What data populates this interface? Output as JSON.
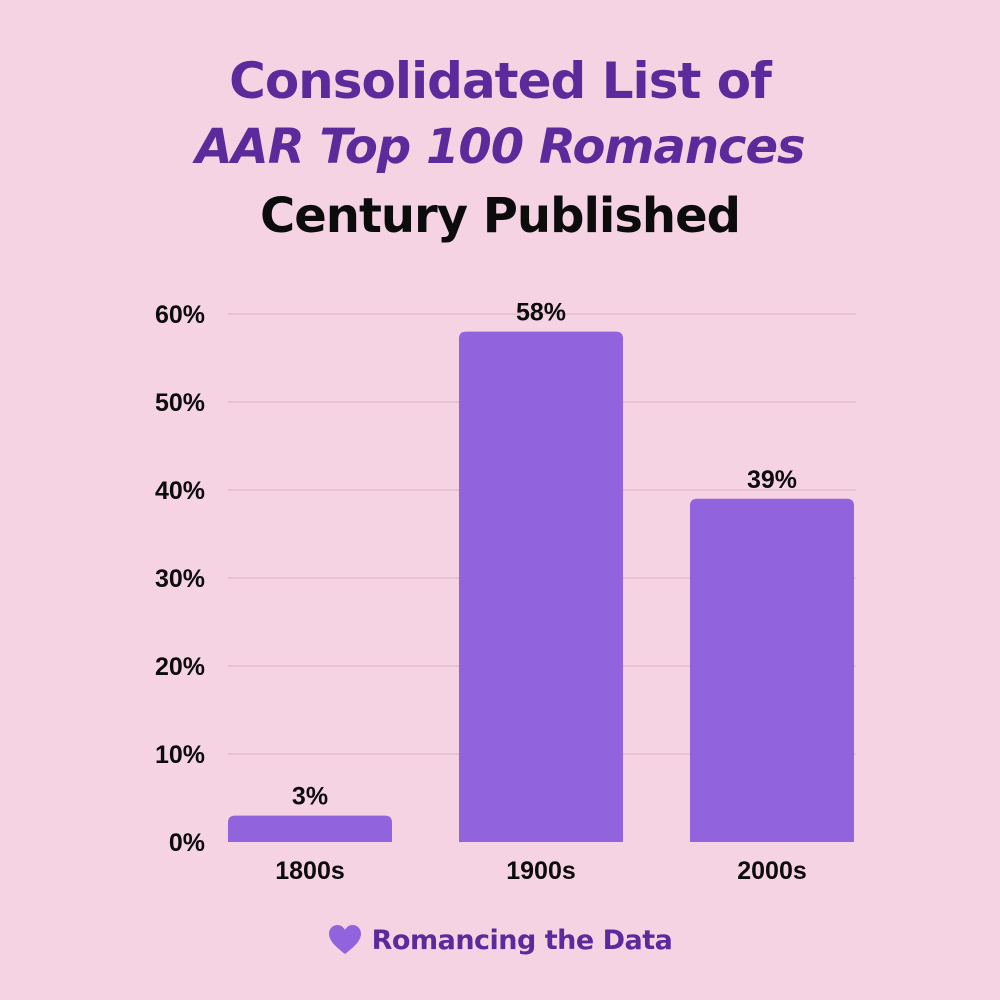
{
  "header": {
    "title_line1": "Consolidated List of",
    "title_line2": "AAR Top 100 Romances",
    "subtitle": "Century Published"
  },
  "footer": {
    "brand": "Romancing the Data",
    "icon": "heart-icon"
  },
  "colors": {
    "background": "#f6d3e3",
    "bar": "#9163dc",
    "title": "#5b2b9b",
    "text": "#0c0c0c",
    "grid": "#e3bccb"
  },
  "chart_data": {
    "type": "bar",
    "title": "Century Published",
    "categories": [
      "1800s",
      "1900s",
      "2000s"
    ],
    "values": [
      3,
      58,
      39
    ],
    "data_labels": [
      "3%",
      "58%",
      "39%"
    ],
    "yticks": [
      0,
      10,
      20,
      30,
      40,
      50,
      60
    ],
    "ytick_labels": [
      "0%",
      "10%",
      "20%",
      "30%",
      "40%",
      "50%",
      "60%"
    ],
    "ylim": [
      0,
      60
    ],
    "xlabel": "",
    "ylabel": "",
    "grid": true,
    "legend": "none"
  }
}
